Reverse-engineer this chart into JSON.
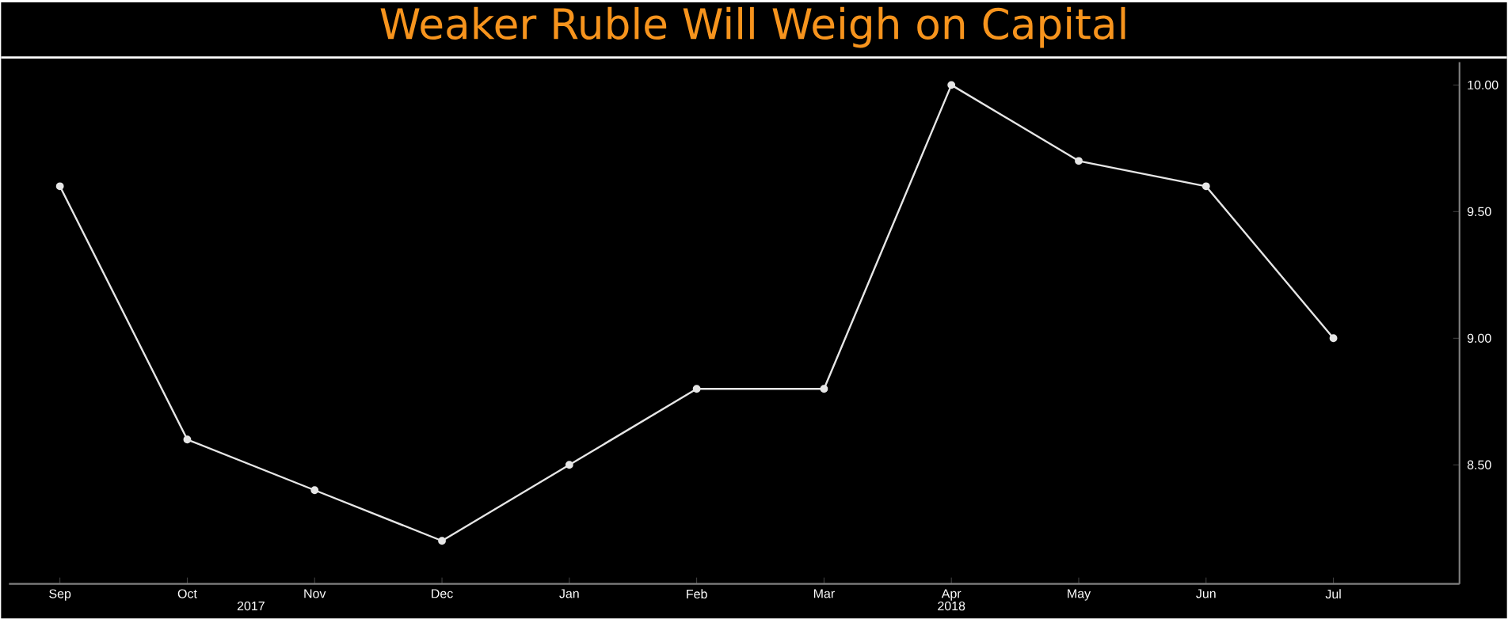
{
  "chart_data": {
    "type": "line",
    "title": "Weaker Ruble Will Weigh on Capital",
    "categories": [
      "Sep",
      "Oct",
      "Nov",
      "Dec",
      "Jan",
      "Feb",
      "Mar",
      "Apr",
      "May",
      "Jun",
      "Jul"
    ],
    "series": [
      {
        "color": "#e6e6e6",
        "values": [
          9.6,
          8.6,
          8.4,
          8.2,
          8.5,
          8.8,
          8.8,
          10.0,
          9.7,
          9.6,
          9.0
        ]
      }
    ],
    "ylim": [
      8.03,
      10.09
    ],
    "yticks": [
      {
        "value": 8.5,
        "label": "8.50"
      },
      {
        "value": 9.0,
        "label": "9.00"
      },
      {
        "value": 9.5,
        "label": "9.50"
      },
      {
        "value": 10.0,
        "label": "10.00"
      }
    ],
    "annotations": [
      "2017",
      "2018"
    ],
    "marker": "circle",
    "line_style": "solid",
    "grid": false
  }
}
